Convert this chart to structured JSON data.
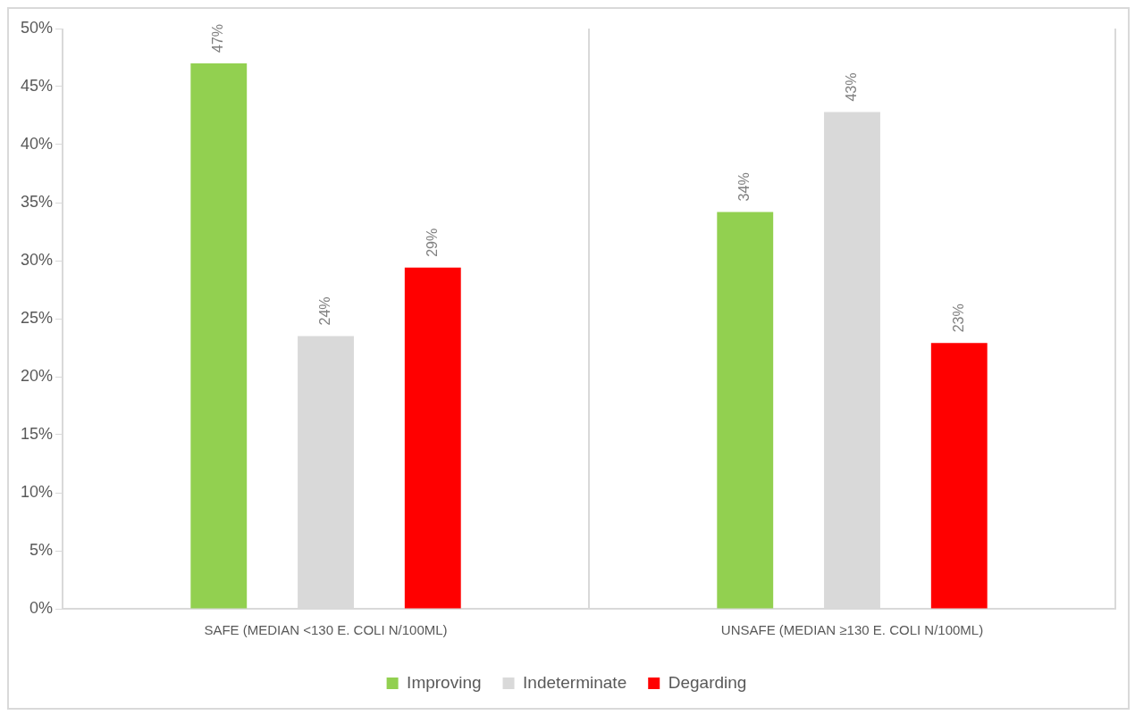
{
  "chart_data": {
    "type": "bar",
    "categories": [
      "SAFE (MEDIAN <130 E. COLI N/100ML)",
      "UNSAFE (MEDIAN ≥130 E. COLI N/100ML)"
    ],
    "series": [
      {
        "name": "Improving",
        "color": "#92d050",
        "values": [
          47.0,
          34.2
        ],
        "value_labels": [
          "47%",
          "34%"
        ]
      },
      {
        "name": "Indeterminate",
        "color": "#d9d9d9",
        "values": [
          23.5,
          42.8
        ],
        "value_labels": [
          "24%",
          "43%"
        ]
      },
      {
        "name": "Degarding",
        "color": "#ff0000",
        "values": [
          29.4,
          22.9
        ],
        "value_labels": [
          "29%",
          "23%"
        ]
      }
    ],
    "ylim": [
      0,
      50
    ],
    "yticks": [
      {
        "value": 0,
        "label": "0%"
      },
      {
        "value": 5,
        "label": "5%"
      },
      {
        "value": 10,
        "label": "10%"
      },
      {
        "value": 15,
        "label": "15%"
      },
      {
        "value": 20,
        "label": "20%"
      },
      {
        "value": 25,
        "label": "25%"
      },
      {
        "value": 30,
        "label": "30%"
      },
      {
        "value": 35,
        "label": "35%"
      },
      {
        "value": 40,
        "label": "40%"
      },
      {
        "value": 45,
        "label": "45%"
      },
      {
        "value": 50,
        "label": "50%"
      }
    ],
    "grid": "x",
    "legend": "bottom"
  }
}
